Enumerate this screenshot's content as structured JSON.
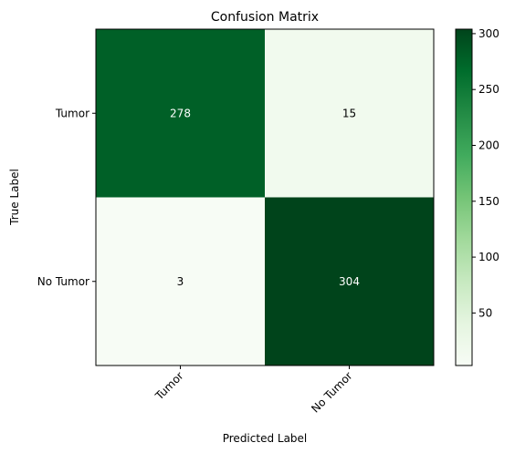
{
  "chart_data": {
    "type": "heatmap",
    "title": "Confusion Matrix",
    "xlabel": "Predicted Label",
    "ylabel": "True Label",
    "x_categories": [
      "Tumor",
      "No Tumor"
    ],
    "y_categories": [
      "Tumor",
      "No Tumor"
    ],
    "values": [
      [
        278,
        15
      ],
      [
        3,
        304
      ]
    ],
    "colorbar": {
      "range": [
        3,
        304
      ],
      "ticks": [
        50,
        100,
        150,
        200,
        250,
        300
      ],
      "colormap": "Greens"
    },
    "text_colors": {
      "on_dark": "#ffffff",
      "on_light": "#000000"
    }
  }
}
